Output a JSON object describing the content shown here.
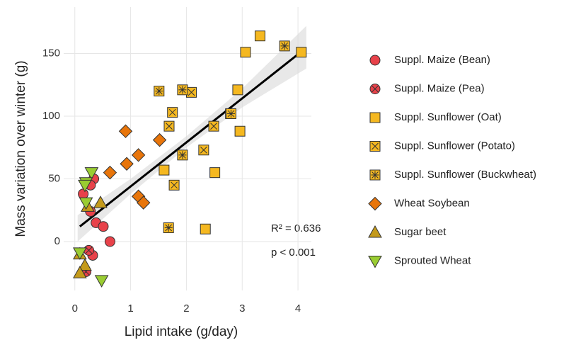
{
  "chart_data": {
    "type": "scatter",
    "x_label": "Lipid intake (g/day)",
    "y_label": "Mass variation over winter (g)",
    "xlim": [
      -0.2,
      4.24
    ],
    "ylim": [
      -39,
      187
    ],
    "xticks": [
      0,
      1,
      2,
      3,
      4
    ],
    "yticks": [
      0,
      50,
      100,
      150
    ],
    "grid": true,
    "legend": "right",
    "annotations": [
      "R² = 0.636",
      "p < 0.001"
    ],
    "fit": {
      "color": "#000000",
      "x": [
        0.09,
        4.02
      ],
      "y": [
        12,
        150
      ]
    },
    "band": {
      "color": "#d9d9d9",
      "x": [
        0.05,
        1,
        2,
        3,
        4.15
      ],
      "lower": [
        0,
        38,
        75,
        107,
        138
      ],
      "upper": [
        21,
        50,
        84,
        122,
        172
      ]
    },
    "series": [
      {
        "name": "Suppl. Maize (Bean)",
        "color": "#e8424a",
        "marker": "circle",
        "x": [
          0.15,
          0.34,
          0.28,
          0.28,
          0.38,
          0.51,
          0.63,
          0.32
        ],
        "y": [
          38,
          50,
          45,
          24,
          15,
          12,
          0,
          -11
        ]
      },
      {
        "name": "Suppl. Maize (Pea)",
        "color": "#e8424a",
        "marker": "circle-x",
        "x": [
          0.25,
          0.2
        ],
        "y": [
          -7,
          -24
        ]
      },
      {
        "name": "Suppl. Sunflower (Oat)",
        "color": "#f5b820",
        "marker": "square",
        "x": [
          3.32,
          3.06,
          2.92,
          2.96,
          2.51,
          2.34,
          1.6,
          4.06
        ],
        "y": [
          164,
          151,
          121,
          88,
          55,
          10,
          57,
          151
        ]
      },
      {
        "name": "Suppl. Sunflower (Potato)",
        "color": "#f5b820",
        "marker": "square-x",
        "x": [
          2.09,
          1.75,
          1.69,
          1.78,
          2.49,
          2.31,
          2.79
        ],
        "y": [
          119,
          103,
          92,
          45,
          92,
          73,
          102
        ]
      },
      {
        "name": "Suppl. Sunflower (Buckwheat)",
        "color": "#f5b820",
        "marker": "square-star",
        "x": [
          1.51,
          1.93,
          1.93,
          1.68,
          3.76,
          2.8
        ],
        "y": [
          120,
          121,
          69,
          11,
          156,
          102
        ]
      },
      {
        "name": "Wheat Soybean",
        "color": "#e8750a",
        "marker": "diamond",
        "x": [
          0.91,
          0.63,
          0.93,
          1.14,
          1.52,
          1.14,
          1.23
        ],
        "y": [
          88,
          55,
          62,
          69,
          81,
          36,
          31
        ]
      },
      {
        "name": "Sugar beet",
        "color": "#c49a1a",
        "marker": "triangle-up",
        "x": [
          0.09,
          0.46,
          0.18,
          0.09,
          0.23
        ],
        "y": [
          -10,
          31,
          -19,
          -25,
          28
        ]
      },
      {
        "name": "Sprouted Wheat",
        "color": "#9acd32",
        "marker": "triangle-down",
        "x": [
          0.3,
          0.2,
          0.18,
          0.2,
          0.09,
          0.48
        ],
        "y": [
          55,
          47,
          45,
          31,
          -9,
          -31
        ]
      }
    ]
  }
}
